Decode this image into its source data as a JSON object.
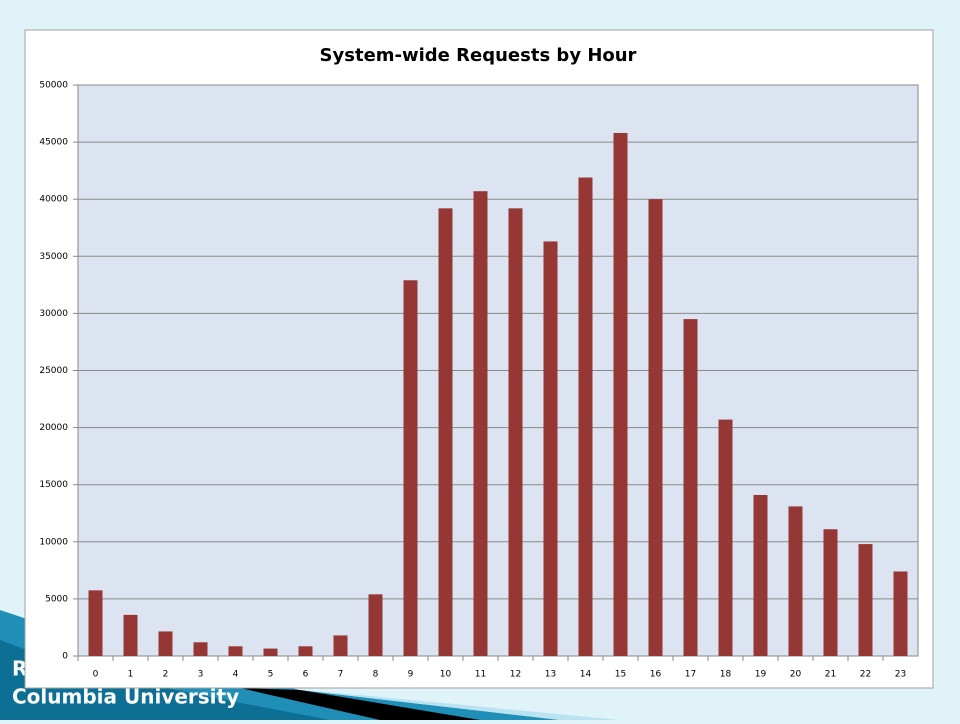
{
  "footer": {
    "lines": [
      "R",
      "Columbia University"
    ]
  },
  "chart_data": {
    "type": "bar",
    "title": "System-wide Requests by Hour",
    "categories": [
      "0",
      "1",
      "2",
      "3",
      "4",
      "5",
      "6",
      "7",
      "8",
      "9",
      "10",
      "11",
      "12",
      "13",
      "14",
      "15",
      "16",
      "17",
      "18",
      "19",
      "20",
      "21",
      "22",
      "23"
    ],
    "values": [
      5750,
      3600,
      2150,
      1200,
      850,
      650,
      850,
      1800,
      5400,
      32900,
      39200,
      40700,
      39200,
      36300,
      41900,
      45800,
      40000,
      29500,
      20700,
      14100,
      13100,
      11100,
      9800,
      7400
    ],
    "color": "#953735",
    "ylim": [
      0,
      50000
    ],
    "yticks": [
      0,
      5000,
      10000,
      15000,
      20000,
      25000,
      30000,
      35000,
      40000,
      45000,
      50000
    ],
    "grid": true
  }
}
